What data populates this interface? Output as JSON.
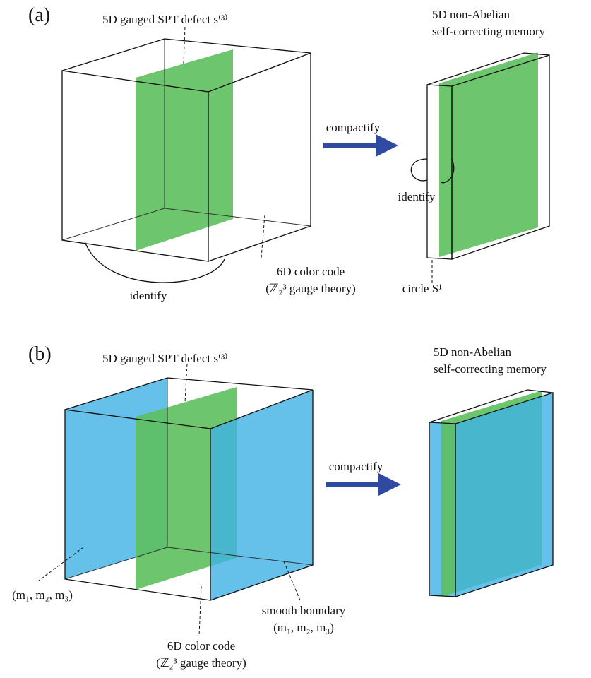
{
  "panel_a": {
    "label": "(a)",
    "defect": "5D gauged SPT defect s⁽³⁾",
    "memory_line1": "5D non-Abelian",
    "memory_line2": "self-correcting memory",
    "arrow": "compactify",
    "identify_right": "identify",
    "identify_left": "identify",
    "code_line1": "6D color code",
    "code_line2": "(ℤ₂³ gauge theory)",
    "circle": "circle S¹"
  },
  "panel_b": {
    "label": "(b)",
    "defect": "5D gauged SPT defect s⁽³⁾",
    "memory_line1": "5D non-Abelian",
    "memory_line2": "self-correcting memory",
    "arrow": "compactify",
    "left_boundary": "(m₁, m₂, m₃)",
    "smooth_line1": "smooth boundary",
    "smooth_line2": "(m₁, m₂, m₃)",
    "code_line1": "6D color code",
    "code_line2": "(ℤ₂³ gauge theory)"
  }
}
